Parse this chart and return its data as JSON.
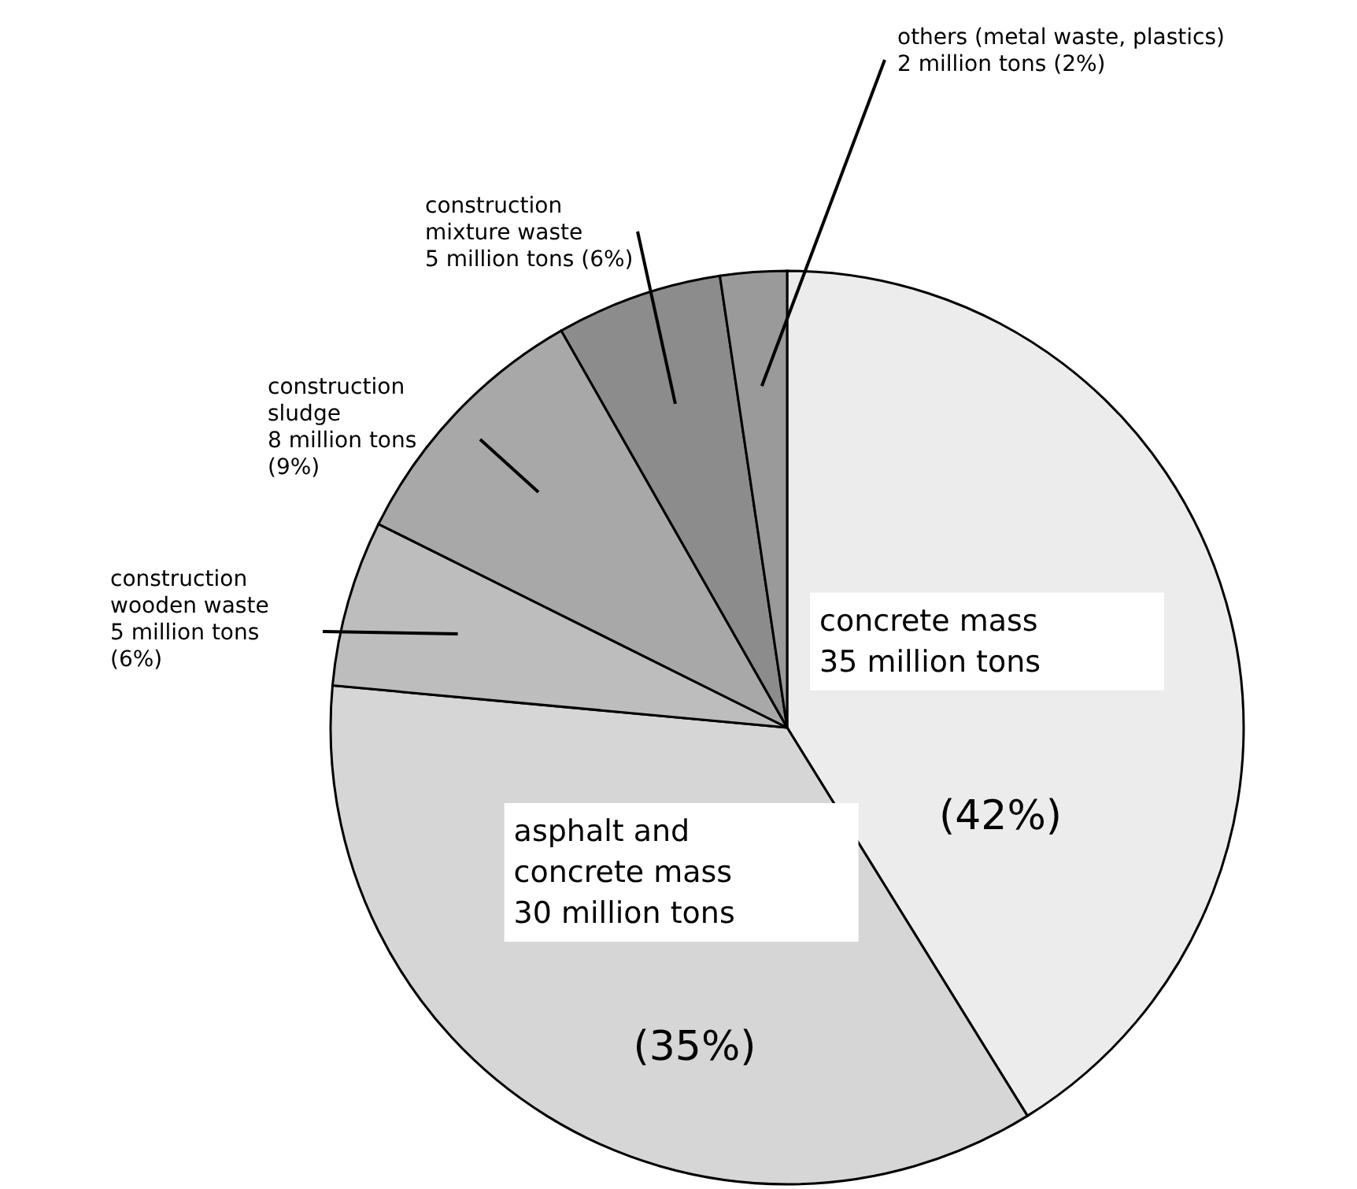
{
  "chart_data": {
    "type": "pie",
    "categories": [
      "concrete mass",
      "asphalt and concrete mass",
      "construction wooden waste",
      "construction sludge",
      "construction mixture waste",
      "others (metal waste, plastics)"
    ],
    "values": [
      35,
      30,
      5,
      8,
      5,
      2
    ],
    "value_labels": [
      "35 million tons",
      "30 million tons",
      "5 million tons",
      "8 million tons",
      "5 million tons",
      "2 million tons"
    ],
    "annotations": [
      "(42%)",
      "(35%)",
      "(6%)",
      "(9%)",
      "(6%)",
      "(2%)"
    ],
    "colors": [
      "#ececec",
      "#d6d6d6",
      "#bdbdbd",
      "#a8a8a8",
      "#8c8c8c",
      "#9a9a9a"
    ]
  }
}
